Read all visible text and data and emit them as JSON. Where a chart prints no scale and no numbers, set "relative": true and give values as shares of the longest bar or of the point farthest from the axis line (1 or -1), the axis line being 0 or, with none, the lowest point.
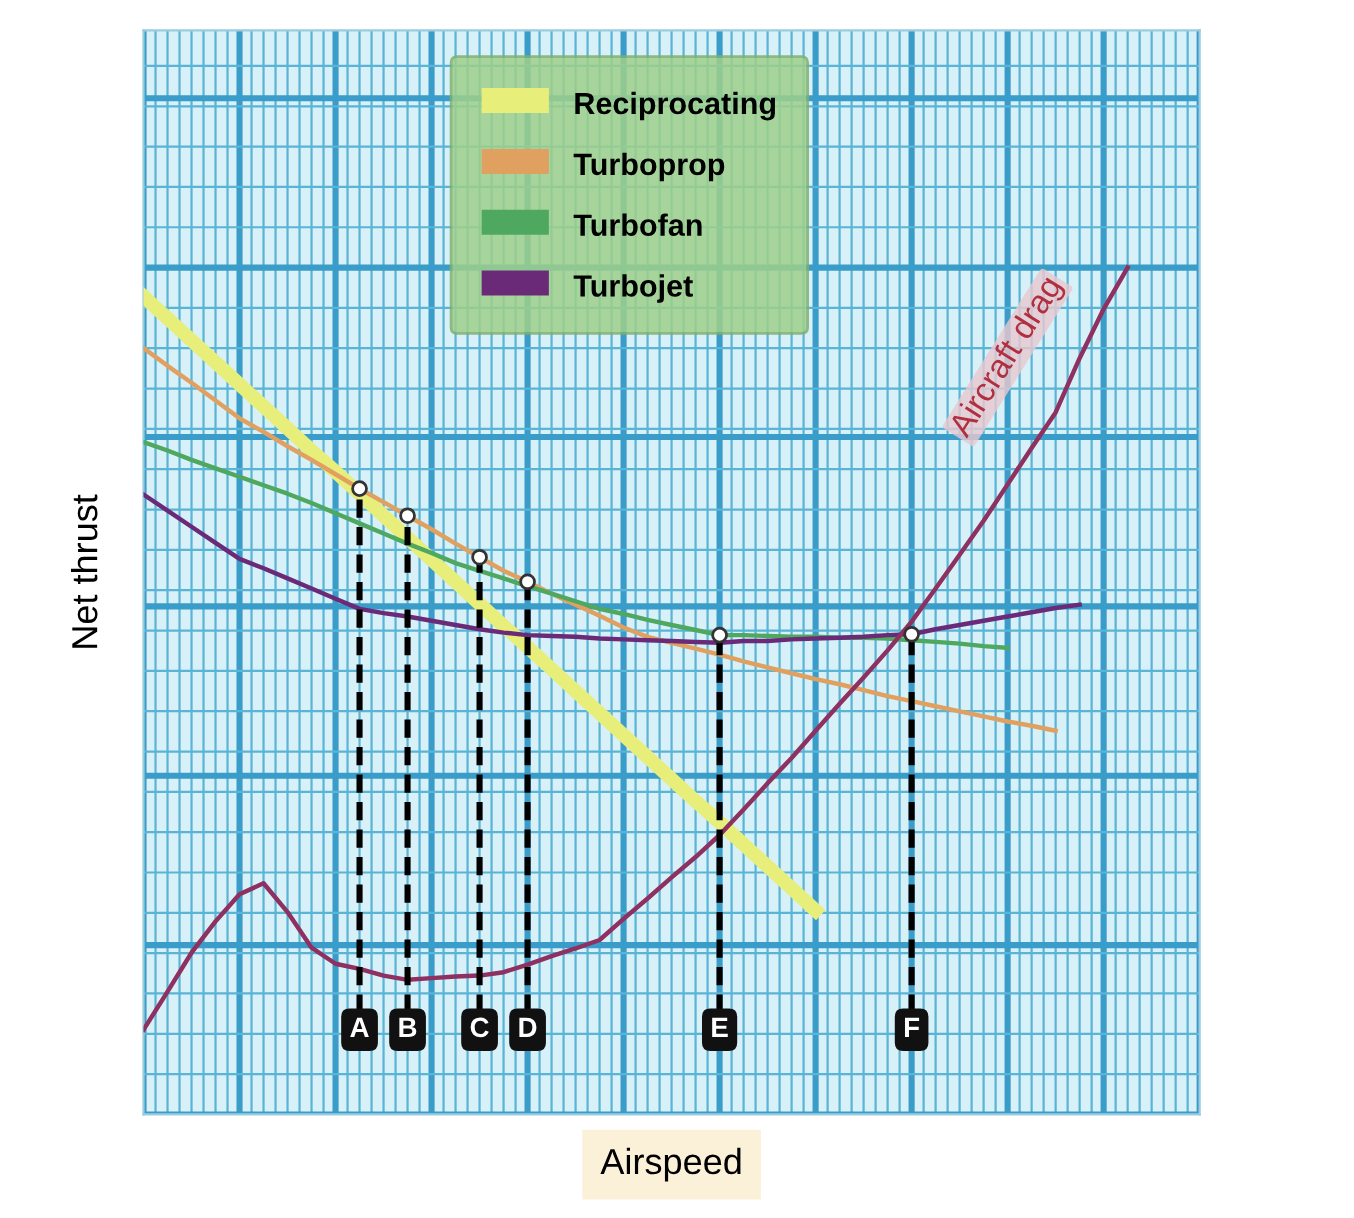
{
  "chart_data": {
    "type": "line",
    "relative": true,
    "xlabel": "Airspeed",
    "ylabel": "Net thrust",
    "grid": true,
    "legend": "top",
    "marker": "none",
    "categories": [
      null,
      null,
      null,
      null,
      null,
      null,
      null,
      null,
      null,
      "A",
      null,
      "B",
      null,
      null,
      "C",
      null,
      "D",
      null,
      null,
      null,
      null,
      null,
      null,
      null,
      "E",
      null,
      null,
      null,
      null,
      null,
      null,
      null,
      "F",
      null,
      null,
      null,
      null,
      null,
      null,
      null,
      null,
      null,
      null,
      null,
      null
    ],
    "series": [
      {
        "name": "Reciprocating",
        "color": "#e8ee7a",
        "values": [
          0.966,
          0.94,
          0.914,
          0.888,
          0.862,
          0.836,
          0.81,
          0.784,
          0.759,
          0.733,
          0.707,
          0.681,
          0.655,
          0.629,
          0.603,
          0.577,
          0.552,
          0.526,
          0.5,
          0.474,
          0.448,
          0.422,
          0.396,
          0.37,
          0.345,
          0.319,
          0.293,
          0.267,
          0.241,
          null,
          null,
          null,
          null,
          null,
          null,
          null,
          null,
          null,
          null,
          null,
          null,
          null,
          null,
          null,
          null
        ]
      },
      {
        "name": "Turboprop",
        "color": "#e0a060",
        "values": [
          0.905,
          0.884,
          0.864,
          0.843,
          0.822,
          0.806,
          0.789,
          0.773,
          0.756,
          0.739,
          0.723,
          0.707,
          0.691,
          0.674,
          0.658,
          0.642,
          0.629,
          0.615,
          0.602,
          0.589,
          0.575,
          0.564,
          0.557,
          0.55,
          0.543,
          0.535,
          0.528,
          0.521,
          0.514,
          0.508,
          0.501,
          0.494,
          0.488,
          0.482,
          0.476,
          0.47,
          0.464,
          0.459,
          0.453,
          null,
          null,
          null,
          null,
          null,
          null
        ]
      },
      {
        "name": "Turbofan",
        "color": "#4fa860",
        "values": [
          0.794,
          0.784,
          0.773,
          0.763,
          0.753,
          0.743,
          0.733,
          0.722,
          0.71,
          0.698,
          0.686,
          0.674,
          0.663,
          0.651,
          0.642,
          0.633,
          0.624,
          0.615,
          0.606,
          0.597,
          0.591,
          0.584,
          0.578,
          0.572,
          0.566,
          0.566,
          0.565,
          0.564,
          0.564,
          0.563,
          0.563,
          0.562,
          0.56,
          0.558,
          0.556,
          0.553,
          0.551,
          null,
          null,
          null,
          null,
          null,
          null,
          null,
          null
        ]
      },
      {
        "name": "Turbojet",
        "color": "#6a2a78",
        "values": [
          0.732,
          0.713,
          0.694,
          0.675,
          0.656,
          0.645,
          0.633,
          0.621,
          0.609,
          0.597,
          0.592,
          0.588,
          0.583,
          0.578,
          0.573,
          0.569,
          0.566,
          0.565,
          0.564,
          0.562,
          0.561,
          0.56,
          0.559,
          0.558,
          0.557,
          0.559,
          0.559,
          0.561,
          0.562,
          0.563,
          0.564,
          0.566,
          0.567,
          0.573,
          0.578,
          0.583,
          0.588,
          0.593,
          0.598,
          0.602,
          null,
          null,
          null,
          null,
          null
        ]
      },
      {
        "color": "#8e3060",
        "values": [
          0.1,
          0.145,
          0.191,
          0.228,
          0.26,
          0.273,
          0.239,
          0.197,
          0.178,
          0.172,
          0.164,
          0.159,
          0.161,
          0.163,
          0.164,
          0.168,
          0.177,
          0.187,
          0.196,
          0.206,
          0.231,
          0.255,
          0.28,
          0.304,
          0.33,
          0.36,
          0.391,
          0.421,
          0.453,
          0.485,
          0.516,
          0.548,
          0.582,
          0.621,
          0.661,
          0.701,
          0.744,
          0.787,
          0.829,
          0.893,
          0.951,
          1.0,
          null,
          null,
          null
        ]
      }
    ],
    "annotations": [
      "Aircraft drag"
    ]
  }
}
